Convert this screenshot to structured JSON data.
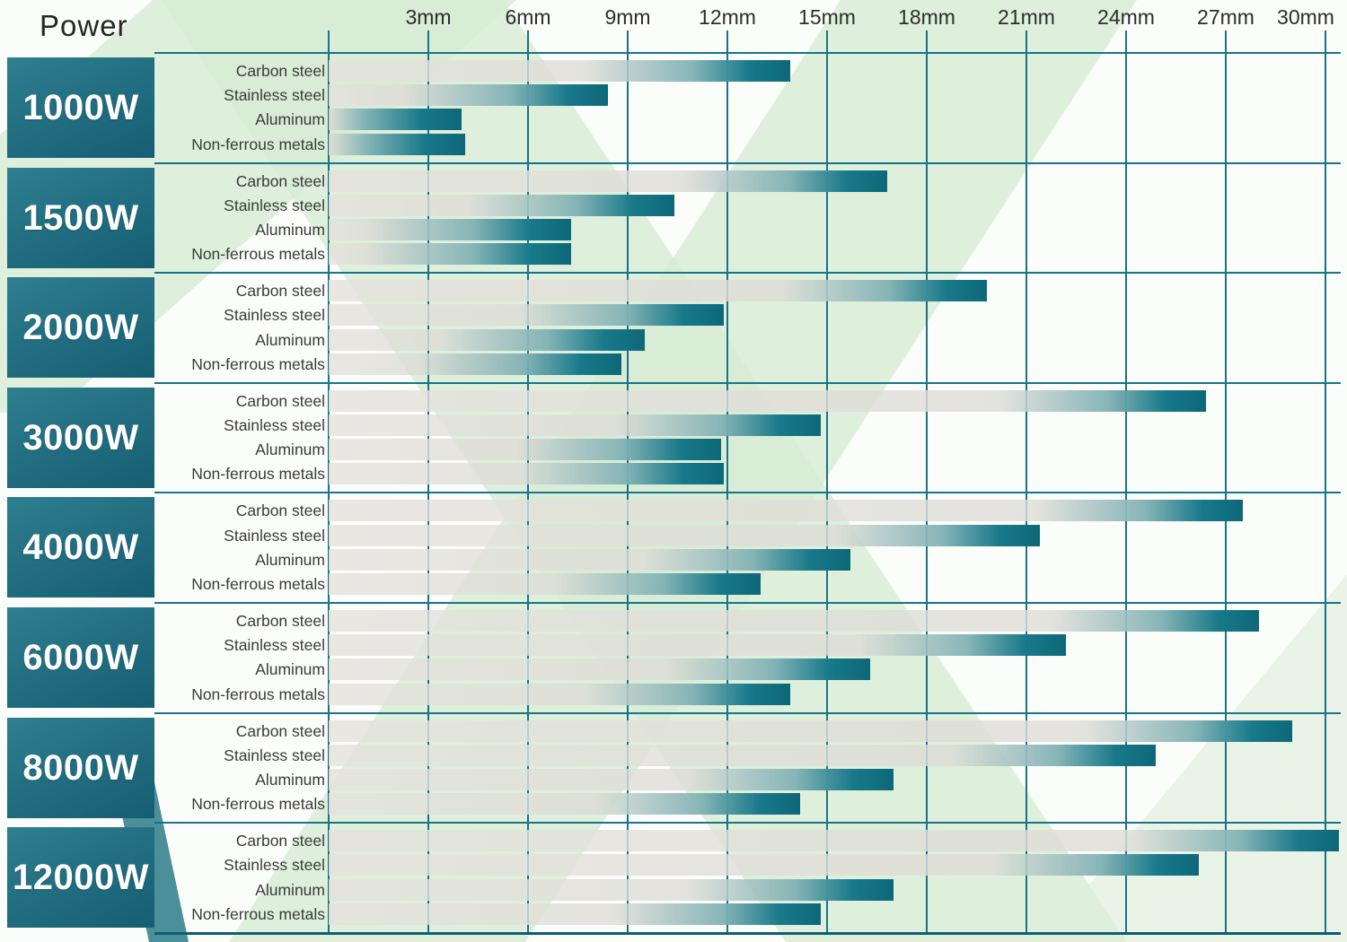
{
  "header": {
    "power_label": "Power"
  },
  "axis": {
    "tick_labels": [
      "3mm",
      "6mm",
      "9mm",
      "12mm",
      "15mm",
      "18mm",
      "21mm",
      "24mm",
      "27mm",
      "30mm"
    ]
  },
  "materials": [
    "Carbon steel",
    "Stainless steel",
    "Aluminum",
    "Non-ferrous metals"
  ],
  "chart_data": {
    "type": "bar",
    "orientation": "horizontal",
    "unit": "mm",
    "xlim": [
      0,
      30
    ],
    "x_ticks_mm": [
      3,
      6,
      9,
      12,
      15,
      18,
      21,
      24,
      27,
      30
    ],
    "grid": true,
    "categories": [
      "Carbon steel",
      "Stainless steel",
      "Aluminum",
      "Non-ferrous metals"
    ],
    "series": [
      {
        "power": "1000W",
        "values_mm": [
          13.9,
          8.4,
          4.0,
          4.1
        ]
      },
      {
        "power": "1500W",
        "values_mm": [
          16.8,
          10.4,
          7.3,
          7.3
        ]
      },
      {
        "power": "2000W",
        "values_mm": [
          19.8,
          11.9,
          9.5,
          8.8
        ]
      },
      {
        "power": "3000W",
        "values_mm": [
          26.4,
          14.8,
          11.8,
          11.9
        ]
      },
      {
        "power": "4000W",
        "values_mm": [
          27.5,
          21.4,
          15.7,
          13.0
        ]
      },
      {
        "power": "6000W",
        "values_mm": [
          28.0,
          22.2,
          16.3,
          13.9
        ]
      },
      {
        "power": "8000W",
        "values_mm": [
          29.0,
          24.9,
          17.0,
          14.2
        ]
      },
      {
        "power": "12000W",
        "values_mm": [
          30.4,
          26.2,
          17.0,
          14.8
        ]
      }
    ]
  },
  "colors": {
    "grid_teal": "#1a7287",
    "power_box_teal": "#236f82",
    "bar_teal_end": "#0d6878",
    "bar_gray": "#e2dfd9",
    "watermark_green": "#d7ebd5",
    "text_dark": "#2d2d2d"
  }
}
